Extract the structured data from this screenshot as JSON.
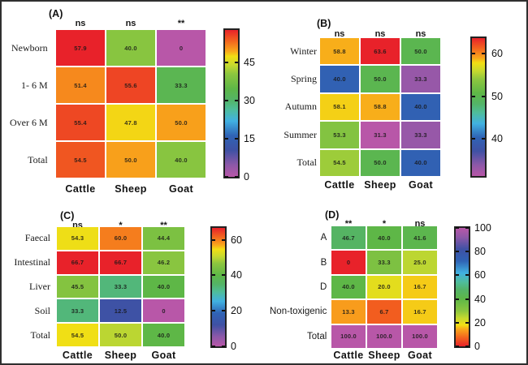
{
  "figure": {
    "background": "#ffffff",
    "border_color": "#2f2f2f",
    "cell_value_color": "#161616"
  },
  "colormap": {
    "description": "rainbow colormap, low=magenta high=red (panel D reversed)",
    "stops": [
      {
        "t": 0.0,
        "color": "#b857a8"
      },
      {
        "t": 0.08,
        "color": "#8d58a8"
      },
      {
        "t": 0.18,
        "color": "#3f51a4"
      },
      {
        "t": 0.28,
        "color": "#2f63b5"
      },
      {
        "t": 0.38,
        "color": "#41b1e1"
      },
      {
        "t": 0.46,
        "color": "#4fbd9a"
      },
      {
        "t": 0.52,
        "color": "#53b469"
      },
      {
        "t": 0.6,
        "color": "#5eb747"
      },
      {
        "t": 0.7,
        "color": "#8cc63f"
      },
      {
        "t": 0.76,
        "color": "#c5d92f"
      },
      {
        "t": 0.82,
        "color": "#f2df14"
      },
      {
        "t": 0.855,
        "color": "#f9a81b"
      },
      {
        "t": 0.93,
        "color": "#f2601f"
      },
      {
        "t": 1.0,
        "color": "#e8222a"
      }
    ]
  },
  "chart_data": [
    {
      "type": "heatmap",
      "panel": "(A)",
      "columns": [
        "Cattle",
        "Sheep",
        "Goat"
      ],
      "rows": [
        "Newborn",
        "1- 6 M",
        "Over 6 M",
        "Total"
      ],
      "significance": [
        "ns",
        "ns",
        "**"
      ],
      "values": [
        [
          57.9,
          40.0,
          0
        ],
        [
          51.4,
          55.6,
          33.3
        ],
        [
          55.4,
          47.8,
          50.0
        ],
        [
          54.5,
          50.0,
          40.0
        ]
      ],
      "labels": [
        [
          "57.9",
          "40.0",
          "0"
        ],
        [
          "51.4",
          "55.6",
          "33.3"
        ],
        [
          "55.4",
          "47.8",
          "50.0"
        ],
        [
          "54.5",
          "50.0",
          "40.0"
        ]
      ],
      "colorbar": {
        "min": 0,
        "max": 57.9,
        "ticks": [
          0,
          15,
          30,
          45
        ],
        "reversed": false
      }
    },
    {
      "type": "heatmap",
      "panel": "(B)",
      "columns": [
        "Cattle",
        "Sheep",
        "Goat"
      ],
      "rows": [
        "Winter",
        "Spring",
        "Autumn",
        "Summer",
        "Total"
      ],
      "significance": [
        "ns",
        "ns",
        "ns"
      ],
      "values": [
        [
          58.8,
          63.6,
          50.0
        ],
        [
          40.0,
          50.0,
          33.3
        ],
        [
          58.1,
          58.8,
          40.0
        ],
        [
          53.3,
          31.3,
          33.3
        ],
        [
          54.5,
          50.0,
          40.0
        ]
      ],
      "labels": [
        [
          "58.8",
          "63.6",
          "50.0"
        ],
        [
          "40.0",
          "50.0",
          "33.3"
        ],
        [
          "58.1",
          "58.8",
          "40.0"
        ],
        [
          "53.3",
          "31.3",
          "33.3"
        ],
        [
          "54.5",
          "50.0",
          "40.0"
        ]
      ],
      "colorbar": {
        "min": 31.3,
        "max": 63.6,
        "ticks": [
          40,
          50,
          60
        ],
        "reversed": false
      }
    },
    {
      "type": "heatmap",
      "panel": "(C)",
      "columns": [
        "Cattle",
        "Sheep",
        "Goat"
      ],
      "rows": [
        "Faecal",
        "Intestinal",
        "Liver",
        "Soil",
        "Total"
      ],
      "significance": [
        "ns",
        "*",
        "**"
      ],
      "values": [
        [
          54.3,
          60.0,
          44.4
        ],
        [
          66.7,
          66.7,
          46.2
        ],
        [
          45.5,
          33.3,
          40.0
        ],
        [
          33.3,
          12.5,
          0
        ],
        [
          54.5,
          50.0,
          40.0
        ]
      ],
      "labels": [
        [
          "54.3",
          "60.0",
          "44.4"
        ],
        [
          "66.7",
          "66.7",
          "46.2"
        ],
        [
          "45.5",
          "33.3",
          "40.0"
        ],
        [
          "33.3",
          "12.5",
          "0"
        ],
        [
          "54.5",
          "50.0",
          "40.0"
        ]
      ],
      "colorbar": {
        "min": 0,
        "max": 66.7,
        "ticks": [
          0,
          20,
          40,
          60
        ],
        "reversed": false
      }
    },
    {
      "type": "heatmap",
      "panel": "(D)",
      "columns": [
        "Cattle",
        "Sheep",
        "Goat"
      ],
      "rows": [
        "A",
        "B",
        "D",
        "Non-toxigenic",
        "Total"
      ],
      "significance": [
        "**",
        "*",
        "ns"
      ],
      "values": [
        [
          46.7,
          40.0,
          41.6
        ],
        [
          0,
          33.3,
          25.0
        ],
        [
          40.0,
          20.0,
          16.7
        ],
        [
          13.3,
          6.7,
          16.7
        ],
        [
          100.0,
          100.0,
          100.0
        ]
      ],
      "labels": [
        [
          "46.7",
          "40.0",
          "41.6"
        ],
        [
          "0",
          "33.3",
          "25.0"
        ],
        [
          "40.0",
          "20.0",
          "16.7"
        ],
        [
          "13.3",
          "6.7",
          "16.7"
        ],
        [
          "100.0",
          "100.0",
          "100.0"
        ]
      ],
      "colorbar": {
        "min": 0,
        "max": 100,
        "ticks": [
          0,
          20,
          40,
          60,
          80,
          100
        ],
        "reversed": true
      }
    }
  ]
}
